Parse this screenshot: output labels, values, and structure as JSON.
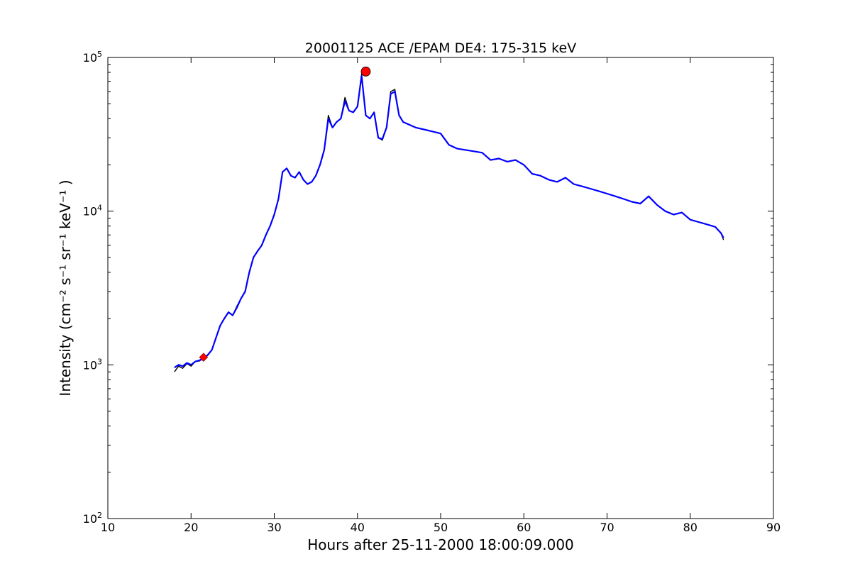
{
  "chart_data": {
    "type": "line",
    "title": "20001125 ACE /EPAM DE4: 175-315 keV",
    "xlabel": "Hours after 25-11-2000 18:00:09.000",
    "ylabel": "Intensity (cm⁻² s⁻¹ sr⁻¹ keV⁻¹ )",
    "xlim": [
      10,
      90
    ],
    "ylim": [
      100,
      100000
    ],
    "yscale": "log",
    "grid": false,
    "x_ticks": [
      10,
      20,
      30,
      40,
      50,
      60,
      70,
      80,
      90
    ],
    "y_ticks": [
      {
        "value": 100,
        "base": "10",
        "exp": "2"
      },
      {
        "value": 1000,
        "base": "10",
        "exp": "3"
      },
      {
        "value": 10000,
        "base": "10",
        "exp": "4"
      },
      {
        "value": 100000,
        "base": "10",
        "exp": "5"
      }
    ],
    "series": [
      {
        "color": "#000000",
        "style": "raw",
        "x": [
          18.0,
          18.5,
          19.0,
          19.5,
          20.0,
          20.5,
          21.0,
          21.5,
          22.0,
          22.5,
          23.0,
          23.5,
          24.0,
          24.5,
          25.0,
          25.5,
          26.0,
          26.5,
          27.0,
          27.5,
          28.0,
          28.5,
          29.0,
          29.5,
          30.0,
          30.5,
          31.0,
          31.5,
          32.0,
          32.5,
          33.0,
          33.5,
          34.0,
          34.5,
          35.0,
          35.5,
          36.0,
          36.5,
          37.0,
          37.5,
          38.0,
          38.5,
          39.0,
          39.5,
          40.0,
          40.5,
          41.0,
          41.5,
          42.0,
          42.5,
          43.0,
          43.5,
          44.0,
          44.5,
          45.0,
          45.5,
          46.0,
          47.0,
          48.0,
          49.0,
          50.0,
          51.0,
          52.0,
          53.0,
          54.0,
          55.0,
          56.0,
          57.0,
          58.0,
          59.0,
          60.0,
          61.0,
          62.0,
          63.0,
          64.0,
          65.0,
          66.0,
          67.0,
          68.0,
          69.0,
          70.0,
          71.0,
          72.0,
          73.0,
          74.0,
          75.0,
          76.0,
          77.0,
          78.0,
          79.0,
          80.0,
          81.0,
          82.0,
          83.0,
          83.7,
          84.0
        ],
        "y": [
          900,
          980,
          950,
          1020,
          980,
          1050,
          1060,
          1100,
          1150,
          1250,
          1500,
          1800,
          2000,
          2200,
          2100,
          2400,
          2700,
          3000,
          4000,
          5000,
          5500,
          6000,
          7000,
          8000,
          9500,
          12000,
          18000,
          19000,
          17000,
          16500,
          18000,
          16000,
          15000,
          15500,
          17000,
          20000,
          25000,
          42000,
          35000,
          38000,
          40000,
          55000,
          45000,
          44000,
          48000,
          78000,
          42000,
          40000,
          44000,
          30000,
          29000,
          35000,
          60000,
          62000,
          42000,
          38000,
          37000,
          35000,
          34000,
          33000,
          32000,
          27000,
          25500,
          25000,
          24500,
          24000,
          21500,
          22000,
          21000,
          21500,
          20000,
          17500,
          17000,
          16000,
          15500,
          16500,
          15000,
          14500,
          14000,
          13500,
          13000,
          12500,
          12000,
          11500,
          11200,
          12500,
          11000,
          10000,
          9500,
          9800,
          8800,
          8500,
          8200,
          7900,
          7200,
          6500
        ]
      },
      {
        "color": "#0000ff",
        "style": "smoothed",
        "x": [
          18.0,
          18.5,
          19.0,
          19.5,
          20.0,
          20.5,
          21.0,
          21.5,
          22.0,
          22.5,
          23.0,
          23.5,
          24.0,
          24.5,
          25.0,
          25.5,
          26.0,
          26.5,
          27.0,
          27.5,
          28.0,
          28.5,
          29.0,
          29.5,
          30.0,
          30.5,
          31.0,
          31.5,
          32.0,
          32.5,
          33.0,
          33.5,
          34.0,
          34.5,
          35.0,
          35.5,
          36.0,
          36.5,
          37.0,
          37.5,
          38.0,
          38.5,
          39.0,
          39.5,
          40.0,
          40.5,
          41.0,
          41.5,
          42.0,
          42.5,
          43.0,
          43.5,
          44.0,
          44.5,
          45.0,
          45.5,
          46.0,
          47.0,
          48.0,
          49.0,
          50.0,
          51.0,
          52.0,
          53.0,
          54.0,
          55.0,
          56.0,
          57.0,
          58.0,
          59.0,
          60.0,
          61.0,
          62.0,
          63.0,
          64.0,
          65.0,
          66.0,
          67.0,
          68.0,
          69.0,
          70.0,
          71.0,
          72.0,
          73.0,
          74.0,
          75.0,
          76.0,
          77.0,
          78.0,
          79.0,
          80.0,
          81.0,
          82.0,
          83.0,
          83.7,
          84.0
        ],
        "y": [
          960,
          1000,
          980,
          1030,
          1000,
          1050,
          1070,
          1100,
          1160,
          1250,
          1500,
          1800,
          2000,
          2200,
          2100,
          2350,
          2700,
          3000,
          4000,
          5000,
          5500,
          6000,
          7000,
          8000,
          9500,
          12000,
          18000,
          19000,
          17000,
          16500,
          18000,
          16000,
          15000,
          15500,
          17000,
          20000,
          25000,
          40000,
          35000,
          38000,
          40000,
          52000,
          45000,
          44000,
          48000,
          76000,
          42000,
          40000,
          44000,
          30000,
          29500,
          35000,
          58000,
          60000,
          42000,
          38000,
          37000,
          35000,
          34000,
          33000,
          32000,
          27000,
          25500,
          25000,
          24500,
          24000,
          21500,
          22000,
          21000,
          21500,
          20000,
          17500,
          17000,
          16000,
          15500,
          16500,
          15000,
          14500,
          14000,
          13500,
          13000,
          12500,
          12000,
          11500,
          11200,
          12500,
          11000,
          10000,
          9500,
          9800,
          8800,
          8500,
          8200,
          7900,
          7200,
          6700
        ]
      }
    ],
    "markers": [
      {
        "shape": "circle",
        "color": "#ff0000",
        "x": 41.0,
        "y": 81000
      },
      {
        "shape": "diamond",
        "color": "#ff0000",
        "x": 21.5,
        "y": 1120
      }
    ]
  }
}
